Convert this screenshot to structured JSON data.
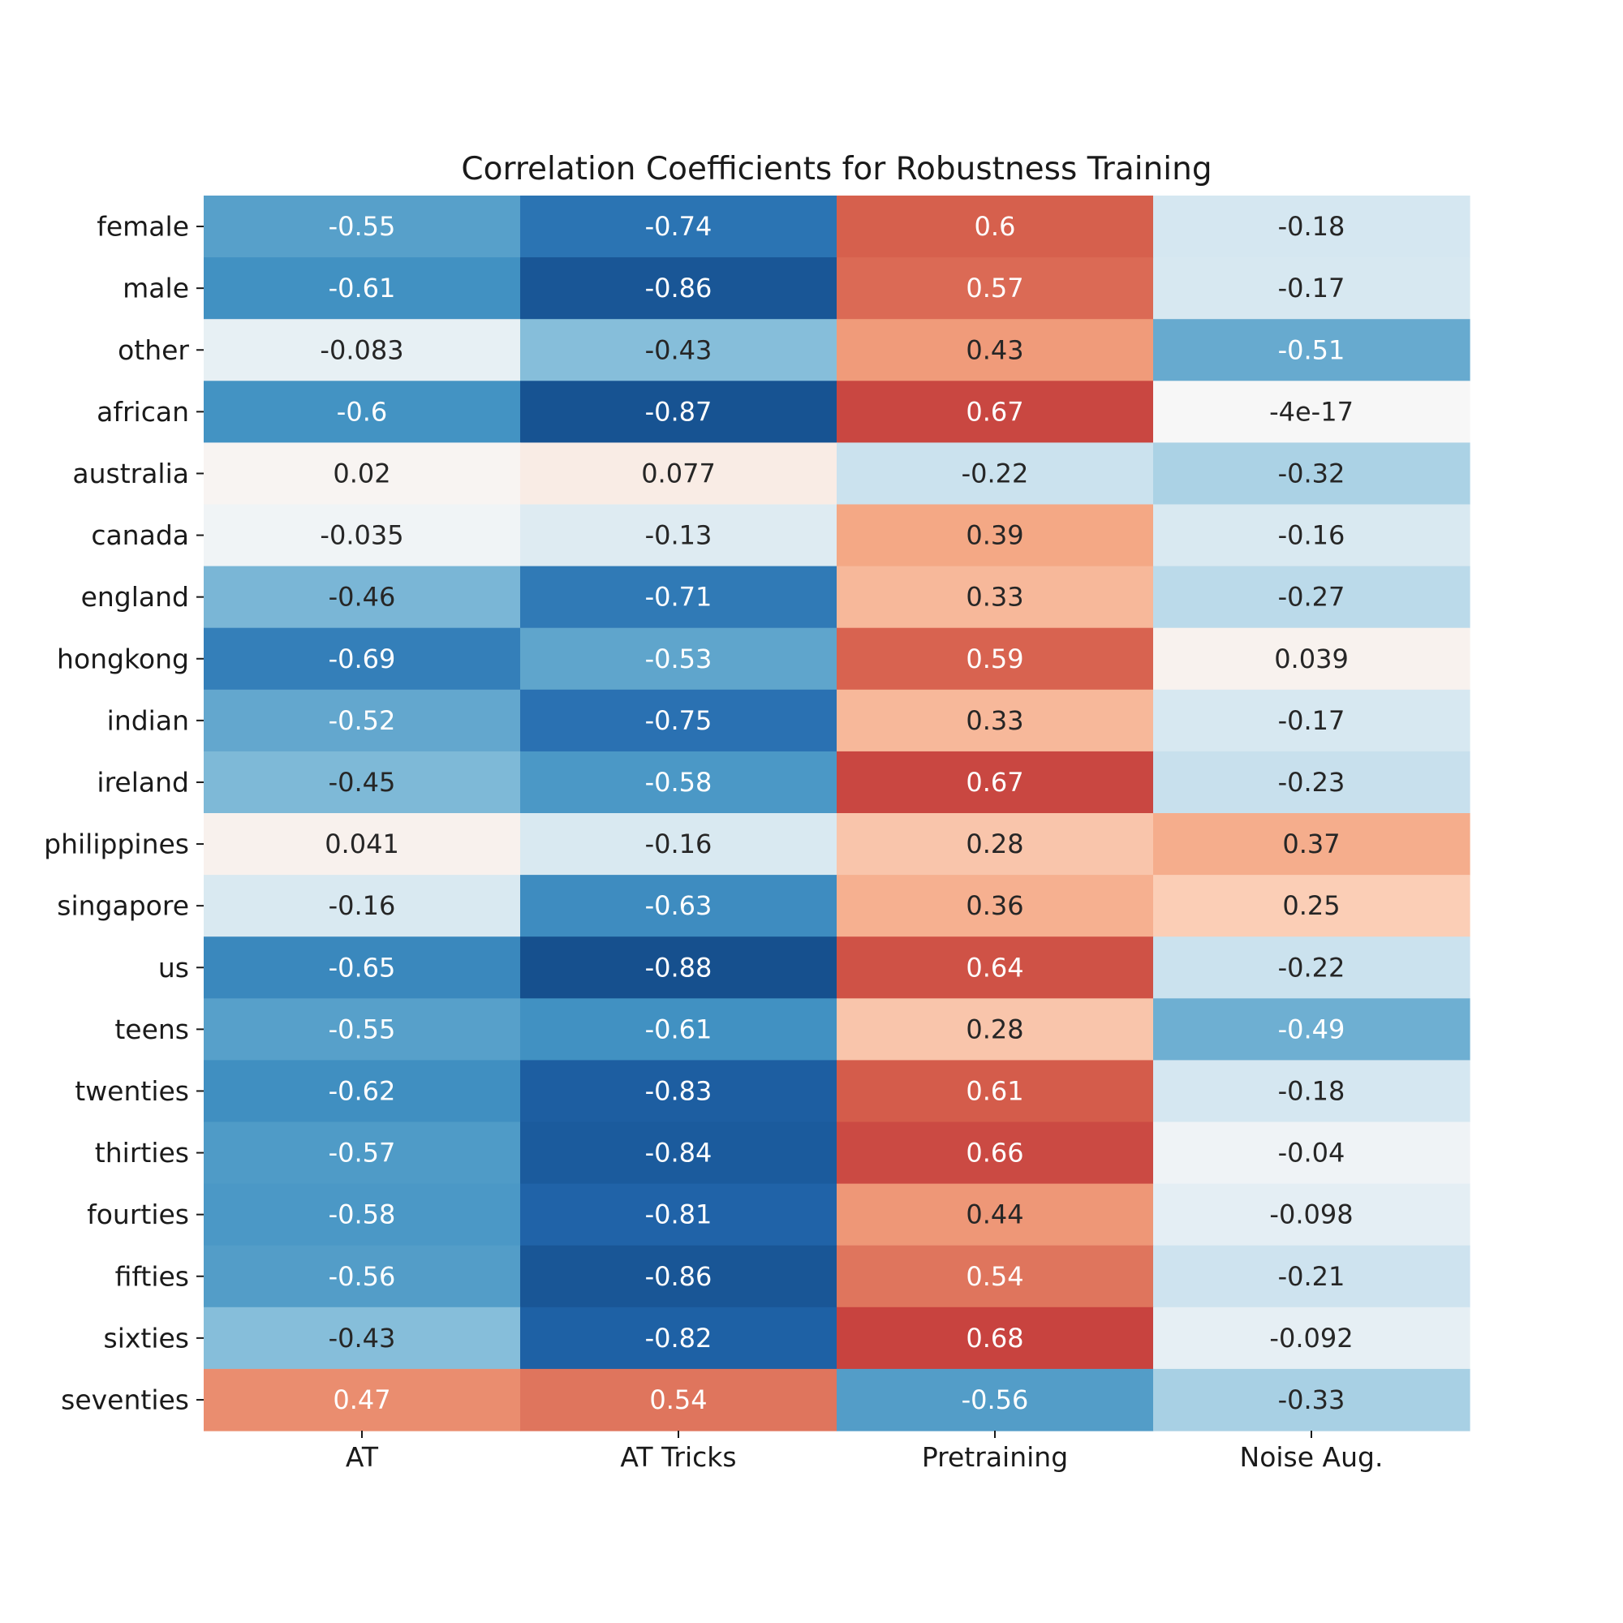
{
  "chart_data": {
    "type": "heatmap",
    "title": "Correlation Coefficients for Robustness Training",
    "columns": [
      "AT",
      "AT Tricks",
      "Pretraining",
      "Noise Aug."
    ],
    "rows": [
      "female",
      "male",
      "other",
      "african",
      "australia",
      "canada",
      "england",
      "hongkong",
      "indian",
      "ireland",
      "philippines",
      "singapore",
      "us",
      "teens",
      "twenties",
      "thirties",
      "fourties",
      "fifties",
      "sixties",
      "seventies"
    ],
    "values": [
      [
        -0.55,
        -0.74,
        0.6,
        -0.18
      ],
      [
        -0.61,
        -0.86,
        0.57,
        -0.17
      ],
      [
        -0.083,
        -0.43,
        0.43,
        -0.51
      ],
      [
        -0.6,
        -0.87,
        0.67,
        -4e-17
      ],
      [
        0.02,
        0.077,
        -0.22,
        -0.32
      ],
      [
        -0.035,
        -0.13,
        0.39,
        -0.16
      ],
      [
        -0.46,
        -0.71,
        0.33,
        -0.27
      ],
      [
        -0.69,
        -0.53,
        0.59,
        0.039
      ],
      [
        -0.52,
        -0.75,
        0.33,
        -0.17
      ],
      [
        -0.45,
        -0.58,
        0.67,
        -0.23
      ],
      [
        0.041,
        -0.16,
        0.28,
        0.37
      ],
      [
        -0.16,
        -0.63,
        0.36,
        0.25
      ],
      [
        -0.65,
        -0.88,
        0.64,
        -0.22
      ],
      [
        -0.55,
        -0.61,
        0.28,
        -0.49
      ],
      [
        -0.62,
        -0.83,
        0.61,
        -0.18
      ],
      [
        -0.57,
        -0.84,
        0.66,
        -0.04
      ],
      [
        -0.58,
        -0.81,
        0.44,
        -0.098
      ],
      [
        -0.56,
        -0.86,
        0.54,
        -0.21
      ],
      [
        -0.43,
        -0.82,
        0.68,
        -0.092
      ],
      [
        0.47,
        0.54,
        -0.56,
        -0.33
      ]
    ],
    "annotations": [
      [
        "-0.55",
        "-0.74",
        "0.6",
        "-0.18"
      ],
      [
        "-0.61",
        "-0.86",
        "0.57",
        "-0.17"
      ],
      [
        "-0.083",
        "-0.43",
        "0.43",
        "-0.51"
      ],
      [
        "-0.6",
        "-0.87",
        "0.67",
        "-4e-17"
      ],
      [
        "0.02",
        "0.077",
        "-0.22",
        "-0.32"
      ],
      [
        "-0.035",
        "-0.13",
        "0.39",
        "-0.16"
      ],
      [
        "-0.46",
        "-0.71",
        "0.33",
        "-0.27"
      ],
      [
        "-0.69",
        "-0.53",
        "0.59",
        "0.039"
      ],
      [
        "-0.52",
        "-0.75",
        "0.33",
        "-0.17"
      ],
      [
        "-0.45",
        "-0.58",
        "0.67",
        "-0.23"
      ],
      [
        "0.041",
        "-0.16",
        "0.28",
        "0.37"
      ],
      [
        "-0.16",
        "-0.63",
        "0.36",
        "0.25"
      ],
      [
        "-0.65",
        "-0.88",
        "0.64",
        "-0.22"
      ],
      [
        "-0.55",
        "-0.61",
        "0.28",
        "-0.49"
      ],
      [
        "-0.62",
        "-0.83",
        "0.61",
        "-0.18"
      ],
      [
        "-0.57",
        "-0.84",
        "0.66",
        "-0.04"
      ],
      [
        "-0.58",
        "-0.81",
        "0.44",
        "-0.098"
      ],
      [
        "-0.56",
        "-0.86",
        "0.54",
        "-0.21"
      ],
      [
        "-0.43",
        "-0.82",
        "0.68",
        "-0.092"
      ],
      [
        "0.47",
        "0.54",
        "-0.56",
        "-0.33"
      ]
    ],
    "colormap": "RdBu_r",
    "vmin": -1,
    "vmax": 1,
    "colorbar": false,
    "grid": false
  }
}
